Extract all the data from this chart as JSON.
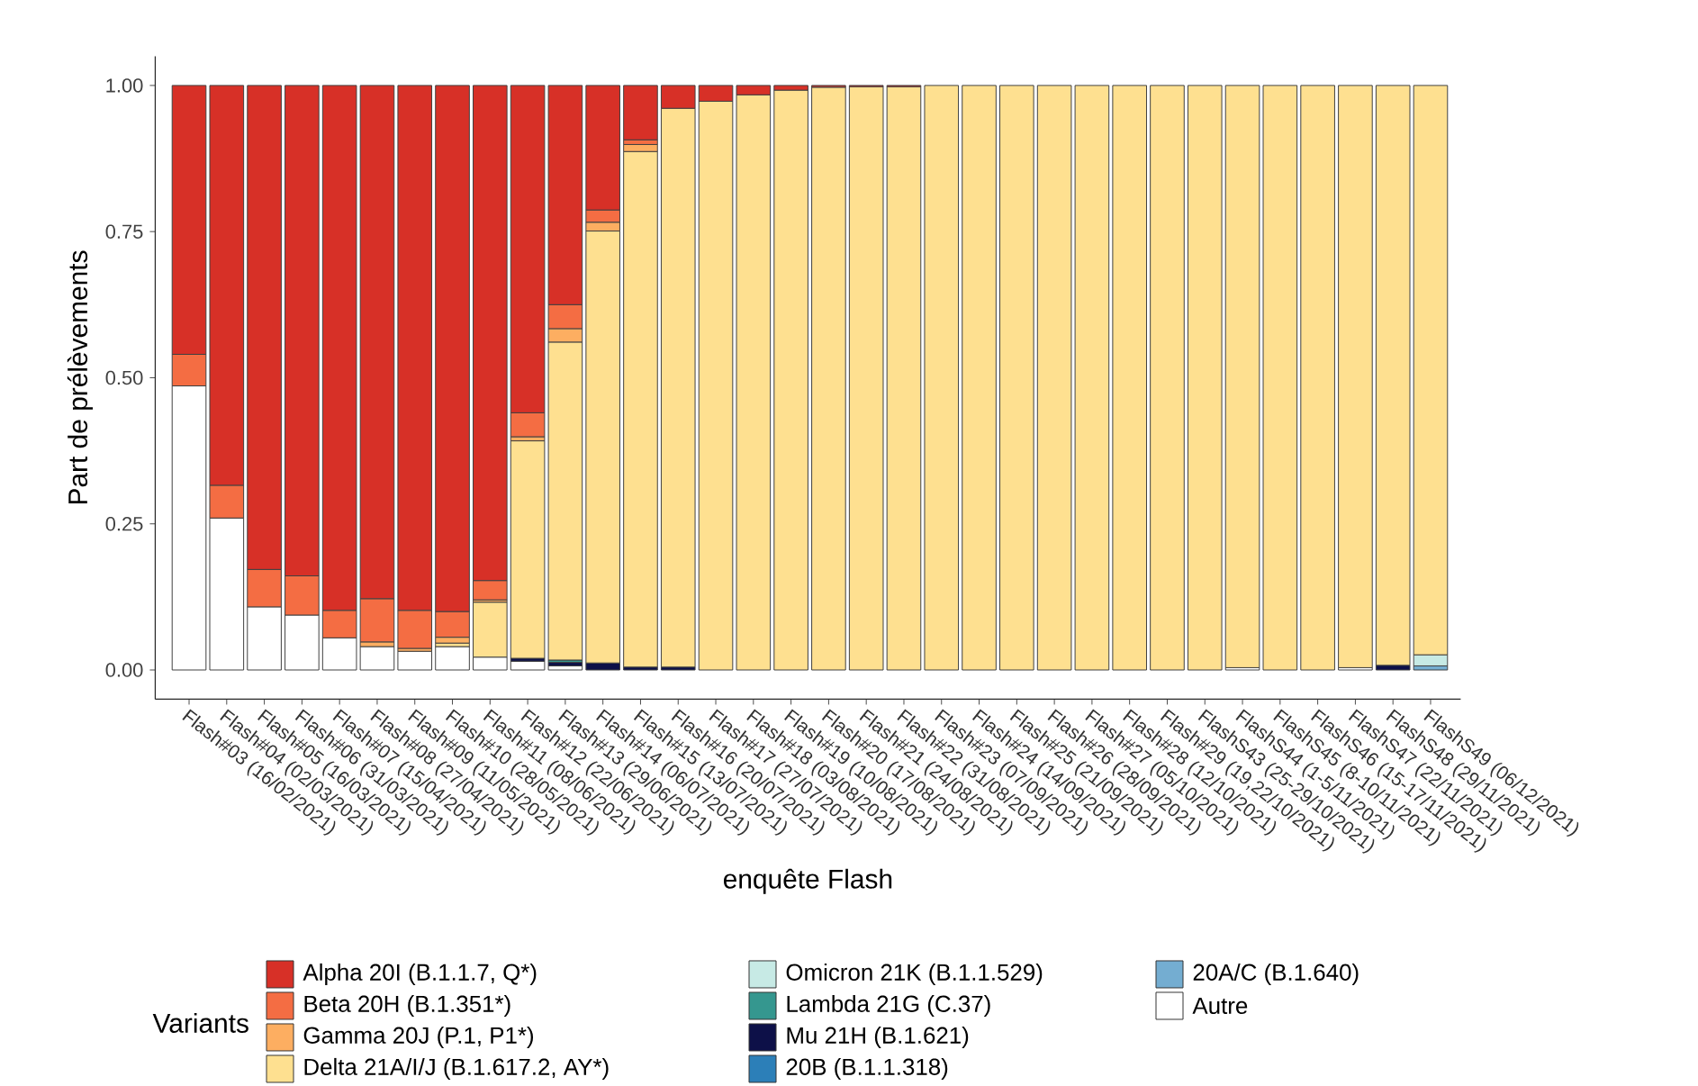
{
  "chart_data": {
    "type": "bar",
    "stacked": true,
    "xlabel": "enquête Flash",
    "ylabel": "Part de prélèvements",
    "legend_title": "Variants",
    "legend": "bottom",
    "categories": [
      "Flash#03 (16/02/2021)",
      "Flash#04 (02/03/2021)",
      "Flash#05 (16/03/2021)",
      "Flash#06 (31/03/2021)",
      "Flash#07 (15/04/2021)",
      "Flash#08 (27/04/2021)",
      "Flash#09 (11/05/2021)",
      "Flash#10 (28/05/2021)",
      "Flash#11 (08/06/2021)",
      "Flash#12 (22/06/2021)",
      "Flash#13 (29/06/2021)",
      "Flash#14 (06/07/2021)",
      "Flash#15 (13/07/2021)",
      "Flash#16 (20/07/2021)",
      "Flash#17 (27/07/2021)",
      "Flash#18 (03/08/2021)",
      "Flash#19 (10/08/2021)",
      "Flash#20 (17/08/2021)",
      "Flash#21 (24/08/2021)",
      "Flash#22 (31/08/2021)",
      "Flash#23 (07/09/2021)",
      "Flash#24 (14/09/2021)",
      "Flash#25 (21/09/2021)",
      "Flash#26 (28/09/2021)",
      "Flash#27 (05/10/2021)",
      "Flash#28 (12/10/2021)",
      "Flash#29 (19,22/10/2021)",
      "FlashS43 (25-29/10/2021)",
      "FlashS44 (1-5/11/2021)",
      "FlashS45 (8-10/11/2021)",
      "FlashS46 (15-17/11/2021)",
      "FlashS47 (22/11/2021)",
      "FlashS48 (29/11/2021)",
      "FlashS49 (06/12/2021)"
    ],
    "ylim": [
      -0.05,
      1.05
    ],
    "yticks": [
      {
        "value": 0,
        "label": "0.00"
      },
      {
        "value": 0.25,
        "label": "0.25"
      },
      {
        "value": 0.5,
        "label": "0.50"
      },
      {
        "value": 0.75,
        "label": "0.75"
      },
      {
        "value": 1,
        "label": "1.00"
      }
    ],
    "series": [
      {
        "name": "Autre",
        "color": "#ffffff",
        "values": [
          0.486,
          0.26,
          0.108,
          0.094,
          0.055,
          0.04,
          0.032,
          0.04,
          0.022,
          0.015,
          0.007,
          null,
          null,
          null,
          null,
          null,
          null,
          null,
          null,
          null,
          null,
          null,
          null,
          null,
          null,
          null,
          null,
          null,
          0.004,
          null,
          null,
          0.004,
          null,
          null
        ]
      },
      {
        "name": "20A/C (B.1.640)",
        "color": "#74add1",
        "values": [
          null,
          null,
          null,
          null,
          null,
          null,
          null,
          null,
          null,
          null,
          null,
          null,
          null,
          null,
          null,
          null,
          null,
          null,
          null,
          null,
          null,
          null,
          null,
          null,
          null,
          null,
          null,
          null,
          null,
          null,
          null,
          null,
          null,
          0.007
        ]
      },
      {
        "name": "20B (B.1.1.318)",
        "color": "#2c7fb8",
        "values": [
          null,
          null,
          null,
          null,
          null,
          null,
          null,
          null,
          null,
          null,
          null,
          null,
          null,
          null,
          null,
          null,
          null,
          null,
          null,
          null,
          null,
          null,
          null,
          null,
          null,
          null,
          null,
          null,
          null,
          null,
          null,
          null,
          null,
          null
        ]
      },
      {
        "name": "Mu 21H (B.1.621)",
        "color": "#0d1048",
        "values": [
          null,
          null,
          null,
          null,
          null,
          null,
          null,
          null,
          null,
          0.005,
          0.006,
          0.012,
          0.005,
          0.005,
          null,
          null,
          null,
          null,
          null,
          null,
          null,
          null,
          null,
          null,
          null,
          null,
          null,
          null,
          null,
          null,
          null,
          null,
          0.008,
          null
        ]
      },
      {
        "name": "Lambda 21G (C.37)",
        "color": "#35978f",
        "values": [
          null,
          null,
          null,
          null,
          null,
          null,
          null,
          null,
          null,
          null,
          0.004,
          null,
          null,
          null,
          null,
          null,
          null,
          null,
          null,
          null,
          null,
          null,
          null,
          null,
          null,
          null,
          null,
          null,
          null,
          null,
          null,
          null,
          null,
          null
        ]
      },
      {
        "name": "Omicron 21K (B.1.1.529)",
        "color": "#c7eae5",
        "values": [
          null,
          null,
          null,
          null,
          null,
          null,
          null,
          null,
          null,
          null,
          null,
          null,
          null,
          null,
          null,
          null,
          null,
          null,
          null,
          null,
          null,
          null,
          null,
          null,
          null,
          null,
          null,
          null,
          null,
          null,
          null,
          null,
          null,
          0.019
        ]
      },
      {
        "name": "Delta 21A/I/J (B.1.617.2, AY*)",
        "color": "#fee090",
        "values": [
          null,
          null,
          null,
          null,
          null,
          null,
          null,
          0.006,
          0.094,
          0.372,
          0.544,
          0.739,
          0.882,
          0.956,
          0.973,
          0.984,
          0.992,
          0.997,
          0.998,
          0.998,
          1,
          1,
          1,
          1,
          1,
          1,
          1,
          1,
          0.996,
          1,
          1,
          0.996,
          0.992,
          0.974
        ]
      },
      {
        "name": "Gamma 20J (P.1, P1*)",
        "color": "#fdae61",
        "values": [
          null,
          null,
          null,
          null,
          null,
          0.008,
          0.005,
          0.01,
          0.004,
          0.007,
          0.023,
          0.015,
          0.012,
          null,
          null,
          null,
          null,
          null,
          null,
          null,
          null,
          null,
          null,
          null,
          null,
          null,
          null,
          null,
          null,
          null,
          null,
          null,
          null,
          null
        ]
      },
      {
        "name": "Beta 20H (B.1.351*)",
        "color": "#f46d43",
        "values": [
          0.054,
          0.056,
          0.064,
          0.067,
          0.047,
          0.074,
          0.065,
          0.044,
          0.033,
          0.041,
          0.041,
          0.021,
          0.008,
          null,
          null,
          null,
          null,
          null,
          null,
          null,
          null,
          null,
          null,
          null,
          null,
          null,
          null,
          null,
          null,
          null,
          null,
          null,
          null,
          null
        ]
      },
      {
        "name": "Alpha 20I (B.1.1.7, Q*)",
        "color": "#d73027",
        "values": [
          0.46,
          0.684,
          0.828,
          0.839,
          0.898,
          0.878,
          0.898,
          0.9,
          0.847,
          0.56,
          0.375,
          0.213,
          0.093,
          0.039,
          0.027,
          0.016,
          0.008,
          0.003,
          0.002,
          0.002,
          null,
          null,
          null,
          null,
          null,
          null,
          null,
          null,
          null,
          null,
          null,
          null,
          null,
          null
        ]
      }
    ]
  }
}
